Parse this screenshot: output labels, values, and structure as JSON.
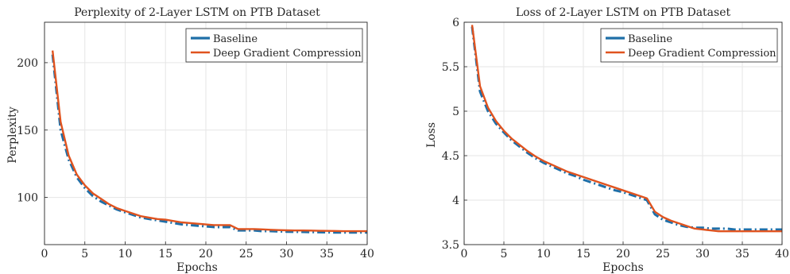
{
  "colors": {
    "baseline": "#1f6fa8",
    "dgc": "#e0531f",
    "grid": "#e6e6e6",
    "axis": "#262626"
  },
  "chart_data": [
    {
      "type": "line",
      "title": "Perplexity of 2-Layer LSTM on PTB Dataset",
      "xlabel": "Epochs",
      "ylabel": "Perplexity",
      "xlim": [
        0,
        40
      ],
      "ylim": [
        65,
        230
      ],
      "xticks": [
        0,
        5,
        10,
        15,
        20,
        25,
        30,
        35,
        40
      ],
      "yticks": [
        100,
        150,
        200
      ],
      "grid": true,
      "legend_position": "top-right",
      "series": [
        {
          "name": "Baseline",
          "style": "dash-dot",
          "x": [
            1,
            2,
            3,
            4,
            5,
            6,
            7,
            8,
            9,
            10,
            11,
            12,
            13,
            14,
            15,
            16,
            17,
            18,
            19,
            20,
            21,
            22,
            23,
            24,
            25,
            26,
            27,
            28,
            29,
            30,
            31,
            32,
            33,
            34,
            35,
            36,
            37,
            38,
            39,
            40
          ],
          "values": [
            206,
            150,
            128,
            115,
            107,
            101,
            97,
            94,
            91,
            89,
            87,
            85,
            84,
            83,
            82,
            81,
            80,
            79.5,
            79,
            78.5,
            78,
            78,
            78,
            75.5,
            75.5,
            75.5,
            75,
            75,
            74.8,
            74.6,
            74.5,
            74.4,
            74.3,
            74.2,
            74.1,
            74,
            74,
            74,
            74,
            74
          ]
        },
        {
          "name": "Deep Gradient Compression",
          "style": "solid",
          "x": [
            1,
            2,
            3,
            4,
            5,
            6,
            7,
            8,
            9,
            10,
            11,
            12,
            13,
            14,
            15,
            16,
            17,
            18,
            19,
            20,
            21,
            22,
            23,
            24,
            25,
            26,
            27,
            28,
            29,
            30,
            31,
            32,
            33,
            34,
            35,
            36,
            37,
            38,
            39,
            40
          ],
          "values": [
            209,
            156,
            131,
            117,
            109,
            103,
            99,
            95,
            92,
            90,
            88,
            86,
            85,
            84,
            83.5,
            82.5,
            81.5,
            81,
            80.5,
            80,
            79.5,
            79.5,
            79.5,
            76.5,
            76.5,
            76.5,
            76.3,
            76,
            75.8,
            75.6,
            75.5,
            75.5,
            75.4,
            75.3,
            75.2,
            75.1,
            75,
            75,
            75,
            75
          ]
        }
      ]
    },
    {
      "type": "line",
      "title": "Loss of 2-Layer LSTM on PTB Dataset",
      "xlabel": "Epochs",
      "ylabel": "Loss",
      "xlim": [
        0,
        40
      ],
      "ylim": [
        3.5,
        6
      ],
      "xticks": [
        0,
        5,
        10,
        15,
        20,
        25,
        30,
        35,
        40
      ],
      "yticks": [
        3.5,
        4,
        4.5,
        5,
        5.5,
        6
      ],
      "grid": true,
      "legend_position": "top-right",
      "series": [
        {
          "name": "Baseline",
          "style": "dash-dot",
          "x": [
            1,
            2,
            3,
            4,
            5,
            6,
            7,
            8,
            9,
            10,
            11,
            12,
            13,
            14,
            15,
            16,
            17,
            18,
            19,
            20,
            21,
            22,
            23,
            24,
            25,
            26,
            27,
            28,
            29,
            30,
            31,
            32,
            33,
            34,
            35,
            36,
            37,
            38,
            39,
            40
          ],
          "values": [
            5.95,
            5.22,
            5.0,
            4.86,
            4.76,
            4.67,
            4.6,
            4.53,
            4.47,
            4.42,
            4.38,
            4.34,
            4.3,
            4.27,
            4.23,
            4.2,
            4.17,
            4.14,
            4.11,
            4.09,
            4.06,
            4.03,
            4.0,
            3.84,
            3.78,
            3.75,
            3.72,
            3.7,
            3.69,
            3.69,
            3.68,
            3.68,
            3.68,
            3.67,
            3.67,
            3.67,
            3.67,
            3.67,
            3.67,
            3.67
          ]
        },
        {
          "name": "Deep Gradient Compression",
          "style": "solid",
          "x": [
            1,
            2,
            3,
            4,
            5,
            6,
            7,
            8,
            9,
            10,
            11,
            12,
            13,
            14,
            15,
            16,
            17,
            18,
            19,
            20,
            21,
            22,
            23,
            24,
            25,
            26,
            27,
            28,
            29,
            30,
            31,
            32,
            33,
            34,
            35,
            36,
            37,
            38,
            39,
            40
          ],
          "values": [
            5.97,
            5.28,
            5.04,
            4.89,
            4.78,
            4.69,
            4.62,
            4.55,
            4.49,
            4.44,
            4.4,
            4.36,
            4.32,
            4.29,
            4.26,
            4.23,
            4.2,
            4.17,
            4.14,
            4.11,
            4.08,
            4.05,
            4.02,
            3.87,
            3.81,
            3.77,
            3.74,
            3.71,
            3.68,
            3.67,
            3.66,
            3.65,
            3.65,
            3.65,
            3.65,
            3.65,
            3.65,
            3.65,
            3.65,
            3.65
          ]
        }
      ]
    }
  ]
}
